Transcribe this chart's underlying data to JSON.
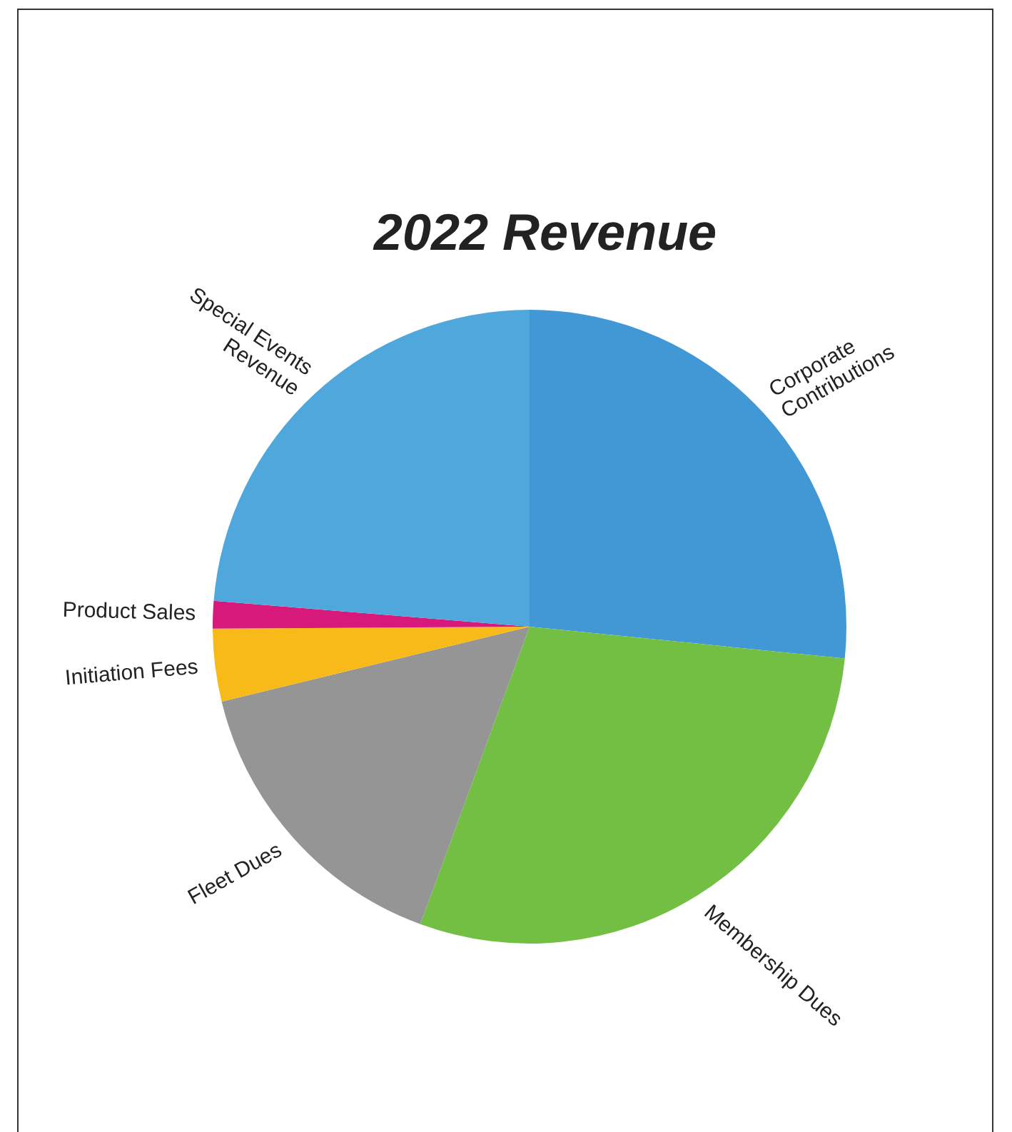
{
  "chart_data": {
    "type": "pie",
    "title": "2022 Revenue",
    "categories": [
      "Corporate Contributions",
      "Membership Dues",
      "Fleet Dues",
      "Initiation Fees",
      "Product Sales",
      "Special Events Revenue"
    ],
    "values": [
      26.6,
      29.0,
      15.6,
      3.7,
      1.4,
      23.7
    ],
    "colors": [
      "#4298d4",
      "#72bf44",
      "#959595",
      "#f8ba19",
      "#d6197a",
      "#4fa7dc"
    ],
    "legend": false
  }
}
